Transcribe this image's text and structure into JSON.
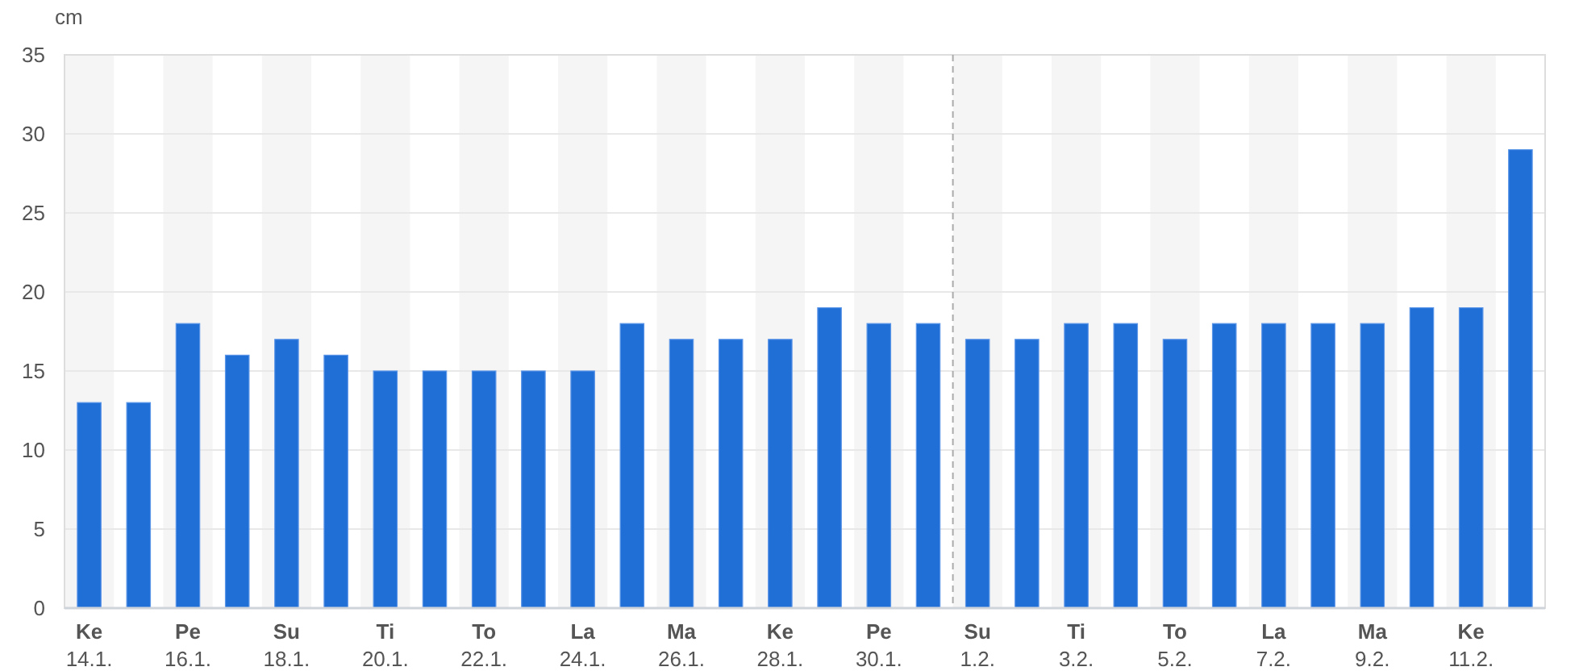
{
  "chart_data": {
    "type": "bar",
    "ylabel": "cm",
    "categories": [
      "Ke 14.1.",
      null,
      "Pe 16.1.",
      null,
      "Su 18.1.",
      null,
      "Ti 20.1.",
      null,
      "To 22.1.",
      null,
      "La 24.1.",
      null,
      "Ma 26.1.",
      null,
      "Ke 28.1.",
      null,
      "Pe 30.1.",
      null,
      "Su 1.2.",
      null,
      "Ti 3.2.",
      null,
      "To 5.2.",
      null,
      "La 7.2.",
      null,
      "Ma 9.2.",
      null,
      "Ke 11.2.",
      null
    ],
    "values": [
      13,
      13,
      18,
      16,
      17,
      16,
      15,
      15,
      15,
      15,
      15,
      18,
      17,
      17,
      17,
      19,
      18,
      18,
      17,
      17,
      18,
      18,
      17,
      18,
      18,
      18,
      18,
      19,
      19,
      29
    ],
    "color": "#1f6fd6",
    "ylim": [
      0,
      35
    ],
    "yticks": [
      0,
      5,
      10,
      15,
      20,
      25,
      30,
      35
    ],
    "grid": true,
    "ref_lines": [
      {
        "axis": "x",
        "value": "Su 1.2.",
        "line_style": "dashed",
        "color": "#aaaaaa"
      }
    ]
  }
}
